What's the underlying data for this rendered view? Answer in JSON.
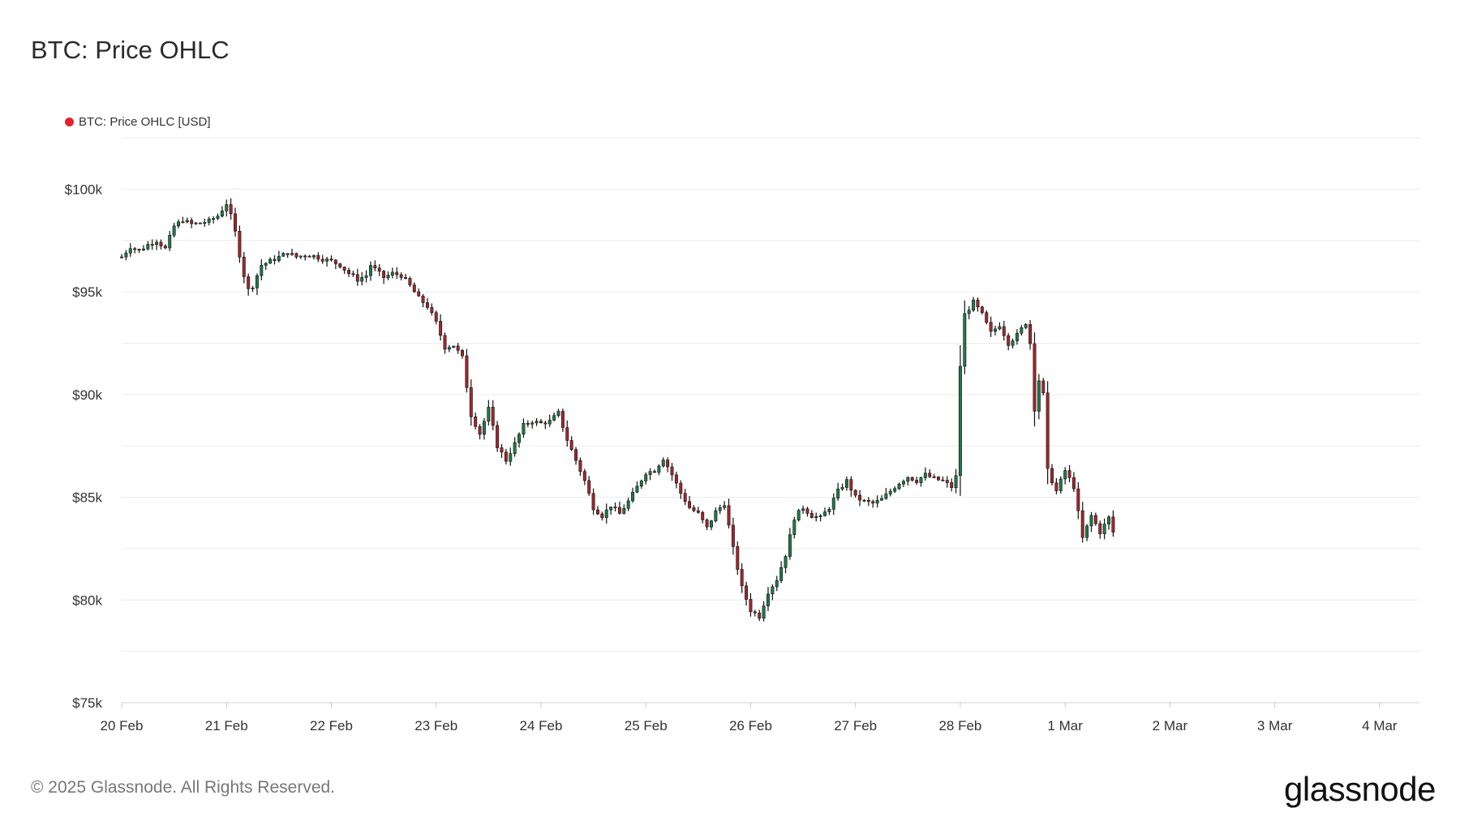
{
  "chart_data": {
    "type": "candlestick",
    "title": "BTC: Price OHLC",
    "legend": {
      "label": "BTC: Price OHLC [USD]",
      "color": "#e8202a",
      "placement": "top-left"
    },
    "colors": {
      "up": "#1f7a4a",
      "down": "#a3272c",
      "wick": "#111111",
      "grid": "#ececec"
    },
    "y_ticks": [
      {
        "value": 75000,
        "label": "$75k"
      },
      {
        "value": 80000,
        "label": "$80k"
      },
      {
        "value": 85000,
        "label": "$85k"
      },
      {
        "value": 90000,
        "label": "$90k"
      },
      {
        "value": 95000,
        "label": "$95k"
      },
      {
        "value": 100000,
        "label": "$100k"
      }
    ],
    "ylim": [
      75000,
      102700
    ],
    "x_ticks": [
      "20 Feb",
      "21 Feb",
      "22 Feb",
      "23 Feb",
      "24 Feb",
      "25 Feb",
      "26 Feb",
      "27 Feb",
      "28 Feb",
      "1 Mar",
      "2 Mar",
      "3 Mar",
      "4 Mar"
    ],
    "xlim_days": [
      0,
      12.38
    ],
    "interval_hours": 1,
    "close_path": [
      [
        0,
        96700
      ],
      [
        2,
        97200
      ],
      [
        4,
        97000
      ],
      [
        6,
        97300
      ],
      [
        8,
        97500
      ],
      [
        10,
        97100
      ],
      [
        12,
        98200
      ],
      [
        14,
        98500
      ],
      [
        16,
        98300
      ],
      [
        18,
        98350
      ],
      [
        20,
        98450
      ],
      [
        22,
        98700
      ],
      [
        24,
        99300
      ],
      [
        25,
        98700
      ],
      [
        26,
        97900
      ],
      [
        27,
        96800
      ],
      [
        28,
        95800
      ],
      [
        29,
        95100
      ],
      [
        30,
        95300
      ],
      [
        31,
        95800
      ],
      [
        32,
        96300
      ],
      [
        34,
        96500
      ],
      [
        36,
        96700
      ],
      [
        38,
        96900
      ],
      [
        40,
        96700
      ],
      [
        42,
        96800
      ],
      [
        44,
        96750
      ],
      [
        46,
        96600
      ],
      [
        48,
        96500
      ],
      [
        50,
        96300
      ],
      [
        52,
        95900
      ],
      [
        54,
        95600
      ],
      [
        56,
        95800
      ],
      [
        57,
        96300
      ],
      [
        58,
        96100
      ],
      [
        60,
        95700
      ],
      [
        62,
        95900
      ],
      [
        64,
        95800
      ],
      [
        66,
        95300
      ],
      [
        68,
        94700
      ],
      [
        70,
        94300
      ],
      [
        72,
        93500
      ],
      [
        74,
        92300
      ],
      [
        76,
        92400
      ],
      [
        78,
        91800
      ],
      [
        80,
        89000
      ],
      [
        82,
        88100
      ],
      [
        84,
        89300
      ],
      [
        86,
        87500
      ],
      [
        88,
        86800
      ],
      [
        90,
        87600
      ],
      [
        92,
        88500
      ],
      [
        94,
        88700
      ],
      [
        96,
        88600
      ],
      [
        98,
        88700
      ],
      [
        100,
        89100
      ],
      [
        102,
        87800
      ],
      [
        104,
        86800
      ],
      [
        106,
        85800
      ],
      [
        108,
        84500
      ],
      [
        110,
        84100
      ],
      [
        112,
        84600
      ],
      [
        114,
        84200
      ],
      [
        116,
        84800
      ],
      [
        118,
        85500
      ],
      [
        120,
        86200
      ],
      [
        122,
        86300
      ],
      [
        124,
        86900
      ],
      [
        126,
        86100
      ],
      [
        128,
        85200
      ],
      [
        130,
        84500
      ],
      [
        132,
        84200
      ],
      [
        134,
        83500
      ],
      [
        136,
        84300
      ],
      [
        138,
        84700
      ],
      [
        140,
        82500
      ],
      [
        142,
        80600
      ],
      [
        144,
        79500
      ],
      [
        146,
        79200
      ],
      [
        148,
        80400
      ],
      [
        150,
        81000
      ],
      [
        152,
        82200
      ],
      [
        154,
        84000
      ],
      [
        156,
        84500
      ],
      [
        158,
        84100
      ],
      [
        160,
        84000
      ],
      [
        162,
        84500
      ],
      [
        164,
        85300
      ],
      [
        166,
        85800
      ],
      [
        168,
        85000
      ],
      [
        170,
        84800
      ],
      [
        172,
        84700
      ],
      [
        174,
        84900
      ],
      [
        176,
        85300
      ],
      [
        178,
        85700
      ],
      [
        180,
        86000
      ],
      [
        182,
        85800
      ],
      [
        184,
        86100
      ],
      [
        186,
        85900
      ],
      [
        188,
        85800
      ],
      [
        190,
        85500
      ],
      [
        191,
        86000
      ],
      [
        192,
        91400
      ],
      [
        193,
        93900
      ],
      [
        195,
        94500
      ],
      [
        197,
        93900
      ],
      [
        199,
        93000
      ],
      [
        201,
        93400
      ],
      [
        203,
        92500
      ],
      [
        205,
        92900
      ],
      [
        207,
        93500
      ],
      [
        208,
        92500
      ],
      [
        209,
        89300
      ],
      [
        210,
        90700
      ],
      [
        211,
        90000
      ],
      [
        212,
        86300
      ],
      [
        214,
        85300
      ],
      [
        216,
        86300
      ],
      [
        218,
        85500
      ],
      [
        220,
        83000
      ],
      [
        222,
        84100
      ],
      [
        224,
        83300
      ],
      [
        226,
        84000
      ],
      [
        227,
        83300
      ]
    ]
  },
  "footer": {
    "copyright": "© 2025 Glassnode. All Rights Reserved.",
    "logo": "glassnode"
  }
}
